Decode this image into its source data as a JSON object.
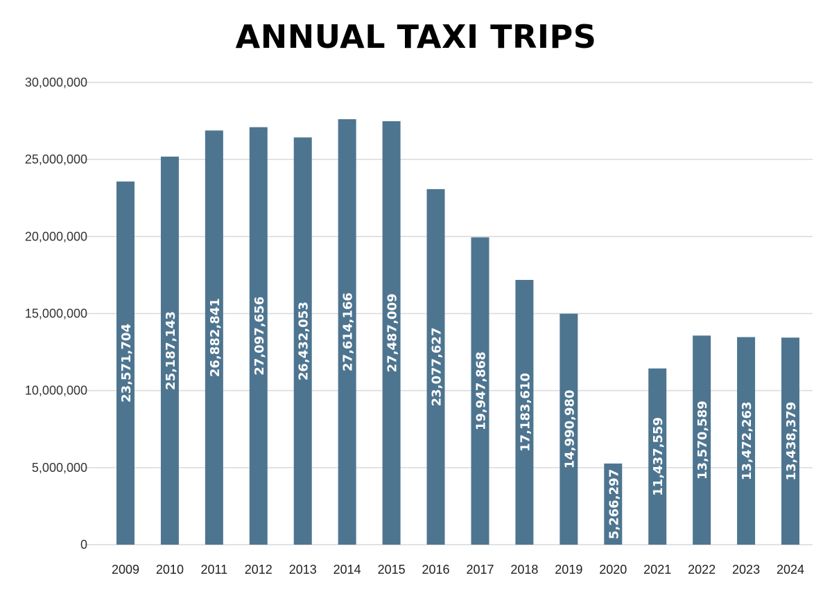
{
  "chart_data": {
    "type": "bar",
    "title": "ANNUAL TAXI TRIPS",
    "xlabel": "",
    "ylabel": "",
    "categories": [
      "2009",
      "2010",
      "2011",
      "2012",
      "2013",
      "2014",
      "2015",
      "2016",
      "2017",
      "2018",
      "2019",
      "2020",
      "2021",
      "2022",
      "2023",
      "2024"
    ],
    "values": [
      23571704,
      25187143,
      26882841,
      27097656,
      26432053,
      27614166,
      27487009,
      23077627,
      19947868,
      17183610,
      14990980,
      5266297,
      11437559,
      13570589,
      13472263,
      13438379
    ],
    "data_labels": [
      "23,571,704",
      "25,187,143",
      "26,882,841",
      "27,097,656",
      "26,432,053",
      "27,614,166",
      "27,487,009",
      "23,077,627",
      "19,947,868",
      "17,183,610",
      "14,990,980",
      "5,266,297",
      "11,437,559",
      "13,570,589",
      "13,472,263",
      "13,438,379"
    ],
    "ylim": [
      0,
      30000000
    ],
    "yticks": [
      0,
      5000000,
      10000000,
      15000000,
      20000000,
      25000000,
      30000000
    ],
    "ytick_labels": [
      "0",
      "5,000,000",
      "10,000,000",
      "15,000,000",
      "20,000,000",
      "25,000,000",
      "30,000,000"
    ],
    "grid": true,
    "legend": null,
    "bar_color": "#4E7590",
    "label_orientation": "vertical"
  }
}
